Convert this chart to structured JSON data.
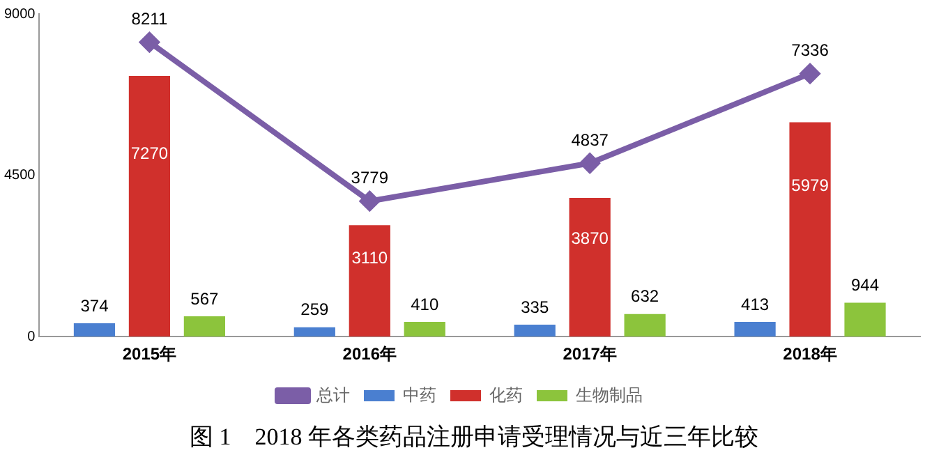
{
  "chart_data": {
    "type": "bar",
    "title": "图 1　2018 年各类药品注册申请受理情况与近三年比较",
    "categories": [
      "2015年",
      "2016年",
      "2017年",
      "2018年"
    ],
    "series": [
      {
        "name": "中药",
        "color": "#4a7fd0",
        "values": [
          374,
          259,
          335,
          413
        ]
      },
      {
        "name": "化药",
        "color": "#d0302c",
        "values": [
          7270,
          3110,
          3870,
          5979
        ]
      },
      {
        "name": "生物制品",
        "color": "#8cc43c",
        "values": [
          567,
          410,
          632,
          944
        ]
      },
      {
        "name": "总计",
        "type": "line",
        "color": "#7b5ea7",
        "marker": "diamond",
        "values": [
          8211,
          3779,
          4837,
          7336
        ]
      }
    ],
    "ylim": [
      0,
      9000
    ],
    "yticks": [
      0,
      4500,
      9000
    ],
    "grid": false,
    "legend": "bottom",
    "data_labels": true
  }
}
